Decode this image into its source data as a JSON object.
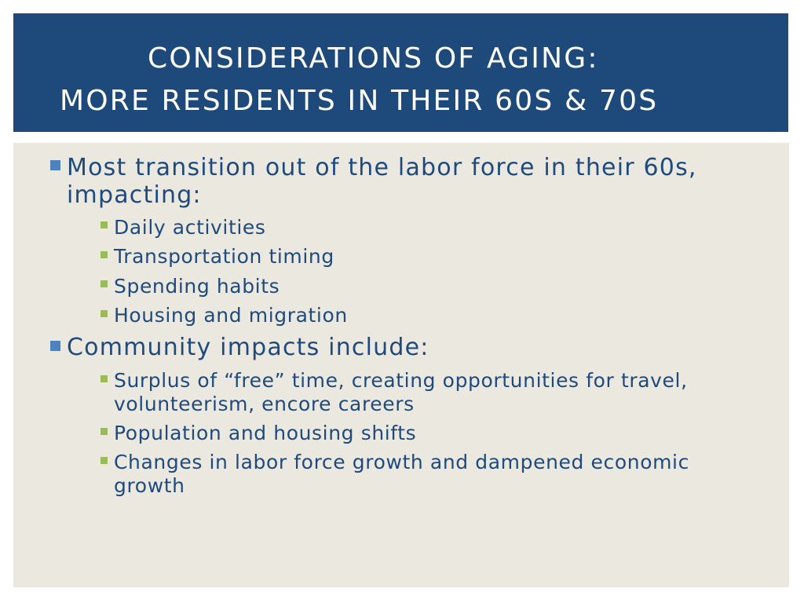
{
  "title": {
    "line1": "CONSIDERATIONS OF AGING:",
    "line2": "MORE RESIDENTS IN THEIR 60S & 70S"
  },
  "content": {
    "point1": {
      "text_line1": "Most transition out of the labor force in their 60s,",
      "text_line2": "impacting:",
      "subpoints": [
        "Daily activities",
        "Transportation timing",
        "Spending habits",
        "Housing and migration"
      ]
    },
    "point2": {
      "text": "Community impacts include:",
      "subpoints": [
        {
          "line1": "Surplus of “free” time, creating opportunities for travel,",
          "line2": "volunteerism, encore careers"
        },
        {
          "line1": "Population and housing shifts",
          "line2": ""
        },
        {
          "line1": "Changes in labor force growth and dampened economic",
          "line2": "growth"
        }
      ]
    }
  },
  "colors": {
    "title_bar": "#1e4a7b",
    "content_bg": "#ebe9df",
    "text": "#1f4a7d",
    "bullet_level1": "#4f81bd",
    "bullet_level2": "#9bbb59"
  }
}
